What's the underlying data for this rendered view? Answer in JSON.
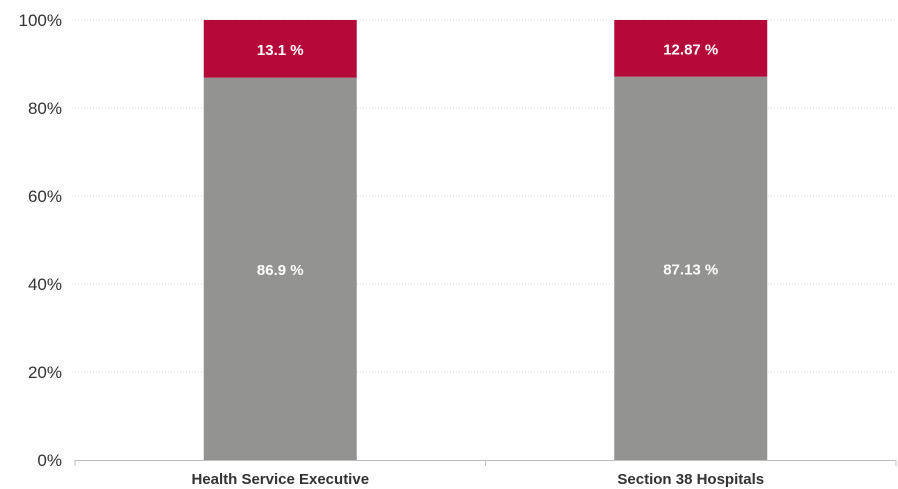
{
  "chart_data": {
    "type": "bar",
    "stacked": true,
    "percent_stacked": true,
    "categories": [
      "Health Service Executive",
      "Section 38 Hospitals"
    ],
    "series": [
      {
        "values": [
          86.9,
          87.13
        ],
        "labels": [
          "86.9 %",
          "87.13 %"
        ],
        "color": "#939492"
      },
      {
        "values": [
          13.1,
          12.87
        ],
        "labels": [
          "13.1 %",
          "12.87 %"
        ],
        "color": "#b5093a"
      }
    ],
    "ylim": [
      0,
      100
    ],
    "yticks": [
      0,
      20,
      40,
      60,
      80,
      100
    ],
    "ytick_labels": [
      "0%",
      "20%",
      "40%",
      "60%",
      "80%",
      "100%"
    ],
    "grid": true,
    "legend": "none"
  }
}
